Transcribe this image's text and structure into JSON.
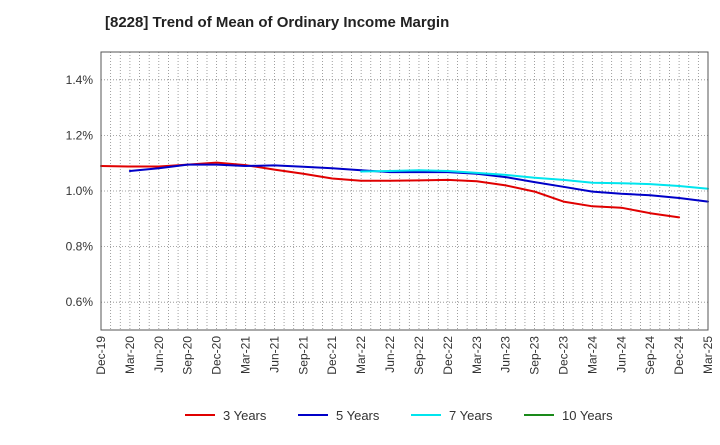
{
  "chart_data": {
    "type": "line",
    "title": "[8228]  Trend of Mean of Ordinary Income Margin",
    "xlabel": "",
    "ylabel": "",
    "ylim": [
      0.5,
      1.5
    ],
    "y_ticks": [
      0.6,
      0.8,
      1.0,
      1.2,
      1.4
    ],
    "y_tick_labels": [
      "0.6%",
      "0.8%",
      "1.0%",
      "1.2%",
      "1.4%"
    ],
    "x_tick_labels": [
      "Dec-19",
      "Mar-20",
      "Jun-20",
      "Sep-20",
      "Dec-20",
      "Mar-21",
      "Jun-21",
      "Sep-21",
      "Dec-21",
      "Mar-22",
      "Jun-22",
      "Sep-22",
      "Dec-22",
      "Mar-23",
      "Jun-23",
      "Sep-23",
      "Dec-23",
      "Mar-24",
      "Jun-24",
      "Sep-24",
      "Dec-24",
      "Mar-25"
    ],
    "grid": true,
    "legend_position": "bottom",
    "series": [
      {
        "name": "3 Years",
        "color": "#e00000",
        "start_index": 0,
        "values": [
          1.09,
          1.088,
          1.088,
          1.095,
          1.102,
          1.093,
          1.077,
          1.062,
          1.045,
          1.037,
          1.037,
          1.038,
          1.04,
          1.035,
          1.02,
          0.998,
          0.962,
          0.945,
          0.94,
          0.92,
          0.905
        ]
      },
      {
        "name": "5 Years",
        "color": "#0000c8",
        "start_index": 1,
        "values": [
          1.072,
          1.082,
          1.095,
          1.095,
          1.09,
          1.092,
          1.087,
          1.082,
          1.075,
          1.068,
          1.068,
          1.068,
          1.062,
          1.05,
          1.032,
          1.015,
          0.998,
          0.99,
          0.985,
          0.975,
          0.962
        ]
      },
      {
        "name": "7 Years",
        "color": "#00e5ee",
        "start_index": 9,
        "values": [
          1.07,
          1.072,
          1.075,
          1.072,
          1.065,
          1.058,
          1.048,
          1.04,
          1.03,
          1.028,
          1.025,
          1.018,
          1.008
        ]
      },
      {
        "name": "10 Years",
        "color": "#1a8a1a",
        "start_index": 0,
        "values": []
      }
    ]
  }
}
